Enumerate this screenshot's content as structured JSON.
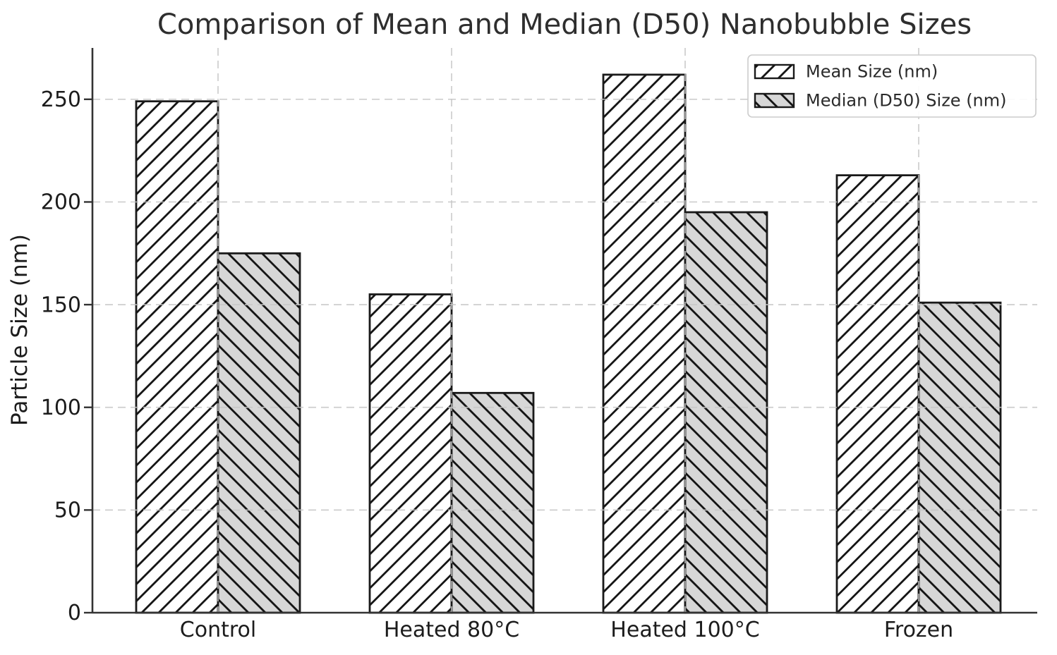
{
  "chart_data": {
    "type": "bar",
    "title": "Comparison of Mean and Median (D50) Nanobubble Sizes",
    "xlabel": "",
    "ylabel": "Particle Size (nm)",
    "categories": [
      "Control",
      "Heated 80°C",
      "Heated 100°C",
      "Frozen"
    ],
    "series": [
      {
        "name": "Mean Size (nm)",
        "values": [
          249,
          155,
          262,
          213
        ],
        "fill": "#ffffff",
        "hatch": "/"
      },
      {
        "name": "Median (D50) Size (nm)",
        "values": [
          175,
          107,
          195,
          151
        ],
        "fill": "#d7d7d7",
        "hatch": "\\"
      }
    ],
    "ylim": [
      0,
      275
    ],
    "yticks": [
      0,
      50,
      100,
      150,
      200,
      250
    ],
    "grid": true,
    "grid_style": "dashed",
    "legend_position": "upper right",
    "colors": {
      "bar_edge": "#1a1a1a",
      "hatch": "#111111",
      "grid": "#c6c6c6",
      "spine": "#333333",
      "text": "#1c1c1c",
      "legend_border": "#cccccc",
      "background": "#ffffff"
    }
  }
}
